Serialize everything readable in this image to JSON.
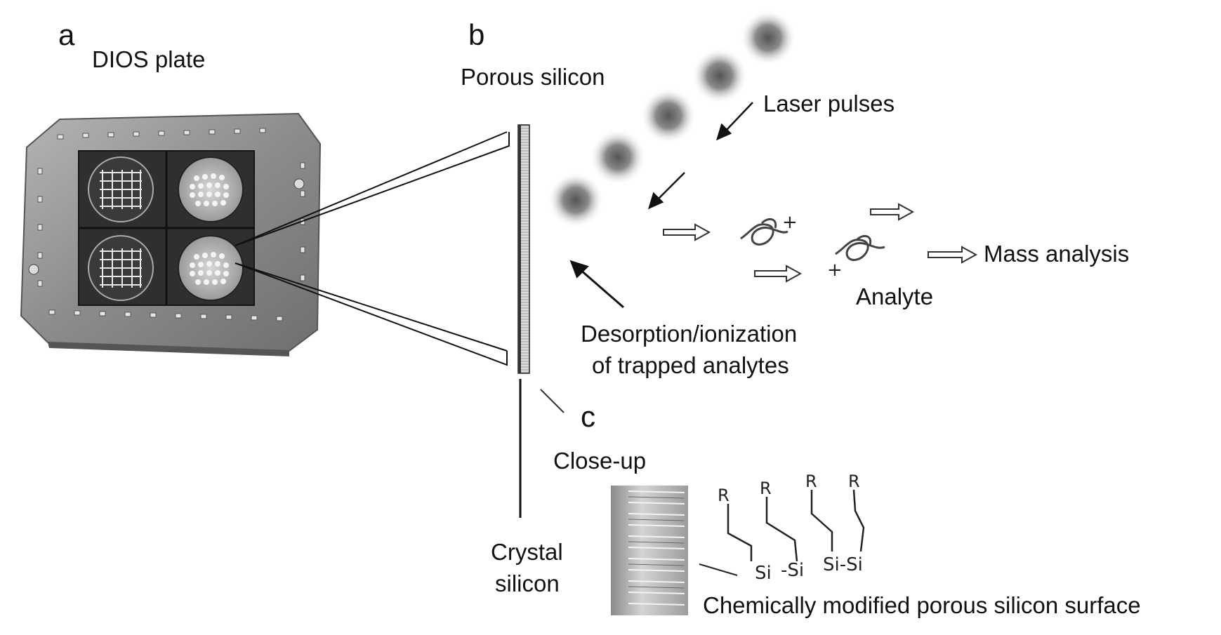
{
  "panels": {
    "a": "a",
    "b": "b",
    "c": "c"
  },
  "labels": {
    "dios_plate": "DIOS plate",
    "porous_silicon": "Porous silicon",
    "laser_pulses": "Laser pulses",
    "mass_analysis": "Mass analysis",
    "analyte": "Analyte",
    "desorption_line1": "Desorption/ionization",
    "desorption_line2": "of trapped analytes",
    "close_up": "Close-up",
    "crystal_line1": "Crystal",
    "crystal_line2": "silicon",
    "surface": "Chemically modified porous silicon surface"
  },
  "chem": {
    "r": "R",
    "si": "Si",
    "si_dash": "-Si",
    "si_si": "Si-Si",
    "plus": "+"
  },
  "colors": {
    "plate_metal": "#9a9a9a",
    "plate_dark": "#2b2b2b",
    "laser_spot": "#6e6e6e",
    "line": "#111111"
  }
}
